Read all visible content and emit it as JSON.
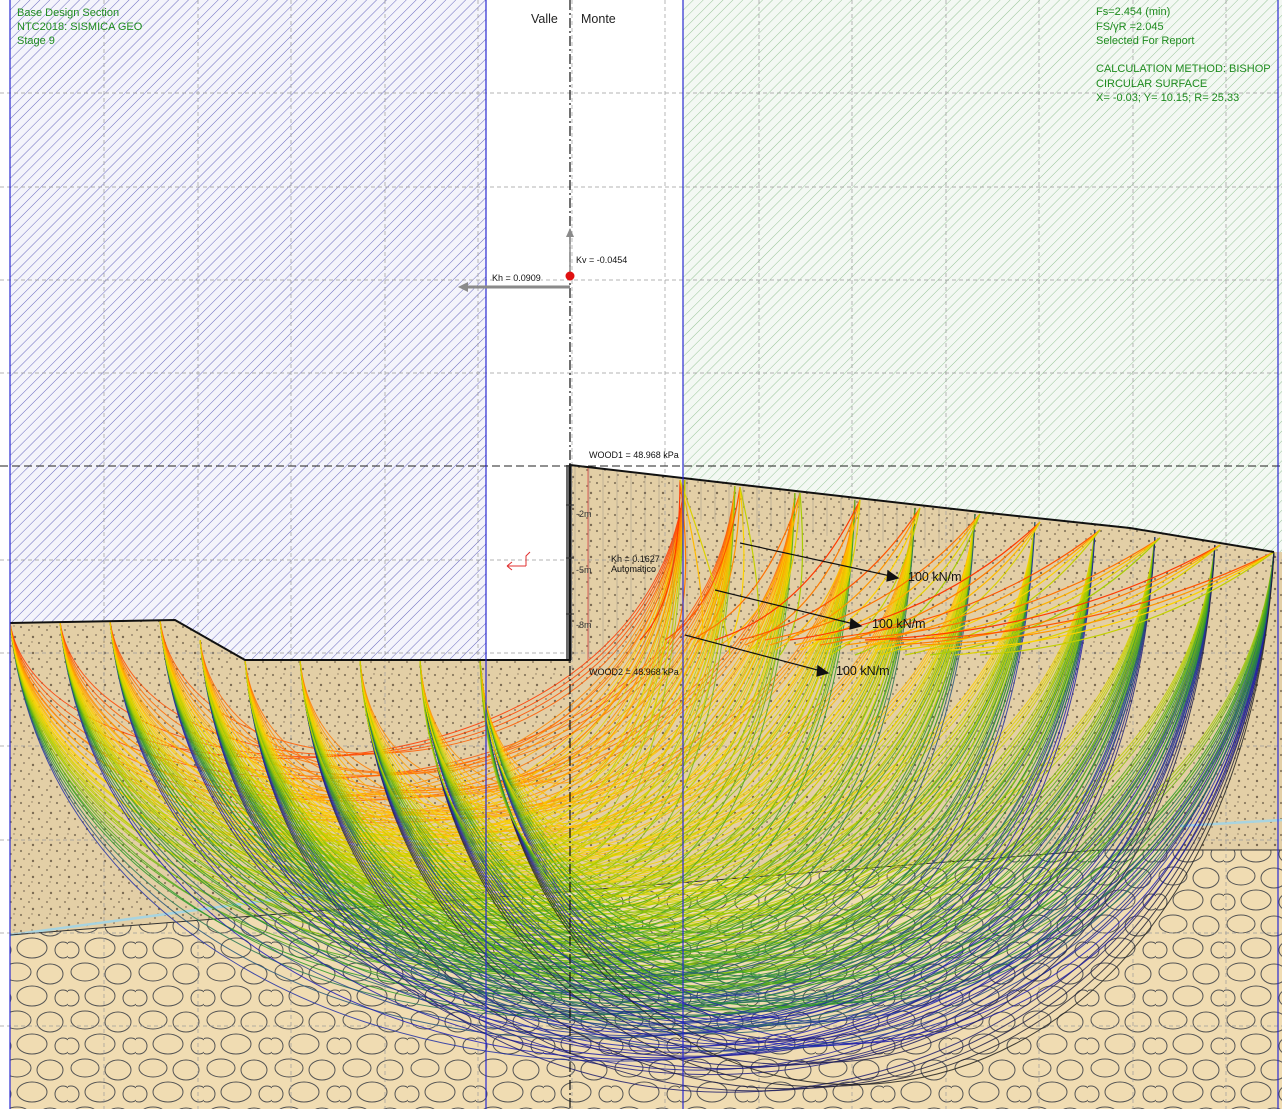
{
  "info_left": {
    "line1": "Base Design Section",
    "line2": "NTC2018: SISMICA GEO",
    "line3": "Stage 9"
  },
  "info_right": {
    "fs": "Fs=2.454 (min)",
    "fs_yr": "FS/γR =2.045",
    "selected": "Selected For Report",
    "method": "CALCULATION METHOD: BISHOP",
    "surface": "CIRCULAR SURFACE",
    "coords": "X= -0.03; Y= 10.15; R= 25.33"
  },
  "sides": {
    "left": "Valle",
    "right": "Monte"
  },
  "seismic": {
    "kh": "Kh = 0.0909",
    "kv": "Kv = -0.0454"
  },
  "wall": {
    "wood1": "WOOD1 = 48.968 kPa",
    "wood2": "WOOD2 = 48.968 kPa",
    "kh_local": "Kh = 0.1627",
    "kh_mode": "Automatico",
    "depths": [
      "-2m",
      "-5m",
      "-8m"
    ]
  },
  "loads": [
    "100 kN/m",
    "100 kN/m",
    "100 kN/m"
  ],
  "colors": {
    "hatch_left": "#4a4ab8",
    "hatch_right": "#6aa86a",
    "soil_fill": "#e8d3a8",
    "grid": "#999999",
    "ground_line": "#111111",
    "info_text": "#1e8c1e",
    "axis_blue": "#2a2ad0"
  },
  "slip_surface_gradient": [
    "#ff1e00",
    "#ff7a00",
    "#ffd200",
    "#b0d000",
    "#2a9a2a",
    "#1f1fb8",
    "#222222"
  ]
}
